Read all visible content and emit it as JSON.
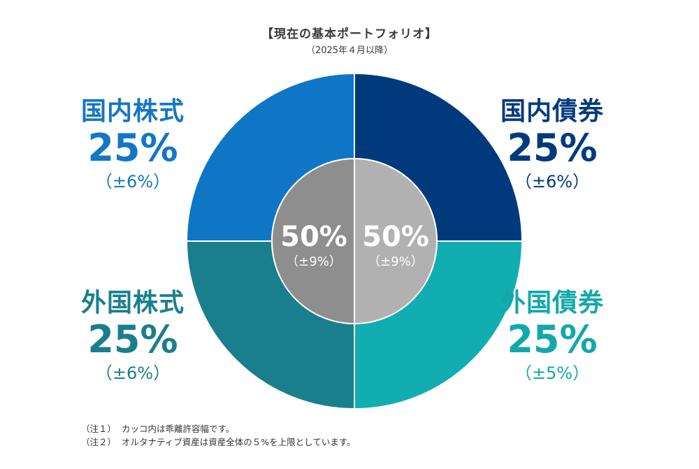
{
  "header": {
    "title": "【現在の基本ポートフォリオ】",
    "subtitle": "（2025年４月以降）"
  },
  "chart_data": {
    "type": "pie",
    "title": "【現在の基本ポートフォリオ】",
    "subtitle": "（2025年４月以降）",
    "outer_ring": [
      {
        "name": "国内債券",
        "value": 25,
        "value_label": "25%",
        "band": "（±6%）",
        "color": "#003a7d",
        "label_color": "#003a7d"
      },
      {
        "name": "外国債券",
        "value": 25,
        "value_label": "25%",
        "band": "（±5%）",
        "color": "#12adb0",
        "label_color": "#12a8ab"
      },
      {
        "name": "外国株式",
        "value": 25,
        "value_label": "25%",
        "band": "（±6%）",
        "color": "#1a7f8c",
        "label_color": "#1a7f8c"
      },
      {
        "name": "国内株式",
        "value": 25,
        "value_label": "25%",
        "band": "（±6%）",
        "color": "#0f76c6",
        "label_color": "#1477c4"
      }
    ],
    "inner_ring": [
      {
        "value": 50,
        "value_label": "50%",
        "band": "（±9%）",
        "color": "#b1b1b1"
      },
      {
        "value": 50,
        "value_label": "50%",
        "band": "（±9%）",
        "color": "#8e8e8e"
      }
    ]
  },
  "notes": [
    {
      "mark": "（注１）",
      "text": "カッコ内は乖離許容幅です。"
    },
    {
      "mark": "（注２）",
      "text": "オルタナティブ資産は資産全体の５%を上限としています。"
    }
  ]
}
